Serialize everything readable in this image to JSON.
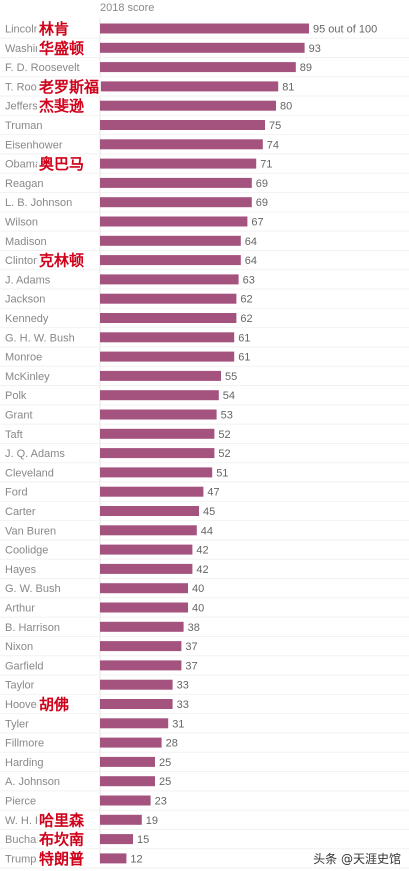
{
  "chart_data": {
    "type": "bar",
    "orientation": "horizontal",
    "title": "2018 score",
    "bar_color": "#a4537f",
    "value_suffix_first": " out of 100",
    "xlim": [
      0,
      100
    ],
    "categories": [
      "Lincoln",
      "Washington",
      "F. D. Roosevelt",
      "T. Roosevelt",
      "Jefferson",
      "Truman",
      "Eisenhower",
      "Obama",
      "Reagan",
      "L. B. Johnson",
      "Wilson",
      "Madison",
      "Clinton",
      "J. Adams",
      "Jackson",
      "Kennedy",
      "G. H. W. Bush",
      "Monroe",
      "McKinley",
      "Polk",
      "Grant",
      "Taft",
      "J. Q. Adams",
      "Cleveland",
      "Ford",
      "Carter",
      "Van Buren",
      "Coolidge",
      "Hayes",
      "G. W. Bush",
      "Arthur",
      "B. Harrison",
      "Nixon",
      "Garfield",
      "Taylor",
      "Hoover",
      "Tyler",
      "Fillmore",
      "Harding",
      "A. Johnson",
      "Pierce",
      "W. H. Harrison",
      "Buchanan",
      "Trump"
    ],
    "values": [
      95,
      93,
      89,
      81,
      80,
      75,
      74,
      71,
      69,
      69,
      67,
      64,
      64,
      63,
      62,
      62,
      61,
      61,
      55,
      54,
      53,
      52,
      52,
      51,
      47,
      45,
      44,
      42,
      42,
      40,
      40,
      38,
      37,
      37,
      33,
      33,
      31,
      28,
      25,
      25,
      23,
      19,
      15,
      12
    ],
    "annotations": [
      {
        "row": 0,
        "text": "林肯"
      },
      {
        "row": 1,
        "text": "华盛顿"
      },
      {
        "row": 3,
        "text": "老罗斯福"
      },
      {
        "row": 4,
        "text": "杰斐逊"
      },
      {
        "row": 7,
        "text": "奥巴马"
      },
      {
        "row": 12,
        "text": "克林顿"
      },
      {
        "row": 35,
        "text": "胡佛"
      },
      {
        "row": 41,
        "text": "哈里森"
      },
      {
        "row": 42,
        "text": "布坎南"
      },
      {
        "row": 43,
        "text": "特朗普"
      }
    ],
    "annotation_color": "#d0021b"
  },
  "watermark": "头条 @天涯史馆"
}
